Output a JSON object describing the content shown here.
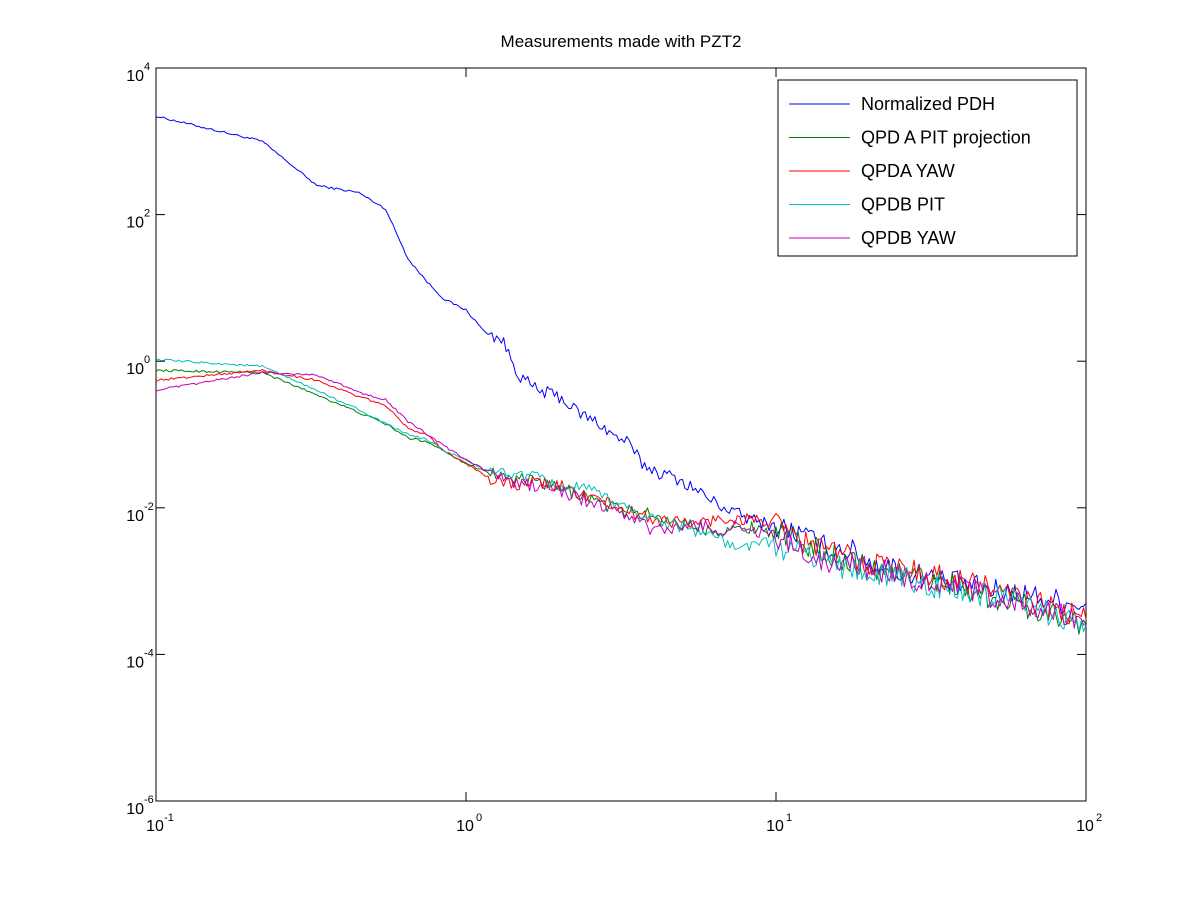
{
  "chart_data": {
    "type": "line",
    "title": "Measurements made with PZT2",
    "xlabel": "",
    "ylabel": "",
    "xscale": "log",
    "yscale": "log",
    "xlim": [
      0.1,
      100
    ],
    "ylim": [
      1e-06,
      10000
    ],
    "grid": false,
    "legend_position": "top-right",
    "x_ticks": [
      {
        "base": "10",
        "exp": "-1",
        "value": 0.1
      },
      {
        "base": "10",
        "exp": "0",
        "value": 1
      },
      {
        "base": "10",
        "exp": "1",
        "value": 10
      },
      {
        "base": "10",
        "exp": "2",
        "value": 100
      }
    ],
    "y_ticks": [
      {
        "base": "10",
        "exp": "-6",
        "value": 1e-06
      },
      {
        "base": "10",
        "exp": "-4",
        "value": 0.0001
      },
      {
        "base": "10",
        "exp": "-2",
        "value": 0.01
      },
      {
        "base": "10",
        "exp": "0",
        "value": 1
      },
      {
        "base": "10",
        "exp": "2",
        "value": 100
      },
      {
        "base": "10",
        "exp": "4",
        "value": 10000
      }
    ],
    "series": [
      {
        "name": "Normalized PDH",
        "color": "#0000ff",
        "x": [
          0.1,
          0.22,
          0.33,
          0.45,
          0.55,
          0.65,
          0.75,
          0.85,
          1.0,
          1.15,
          1.3,
          1.5,
          1.7,
          2.0,
          2.3,
          2.7,
          3.0,
          3.3,
          3.7,
          4.2,
          4.8,
          5.5,
          6.3,
          7.2,
          8.2,
          9.5,
          11,
          12.5,
          14,
          16,
          18,
          20,
          23,
          26,
          30,
          35,
          40,
          46,
          53,
          60,
          70,
          80,
          90,
          100
        ],
        "y": [
          2200,
          1000,
          250,
          200,
          120,
          25,
          12,
          7,
          5,
          2.5,
          2,
          0.6,
          0.4,
          0.33,
          0.2,
          0.14,
          0.095,
          0.08,
          0.04,
          0.03,
          0.025,
          0.018,
          0.012,
          0.009,
          0.007,
          0.006,
          0.005,
          0.004,
          0.003,
          0.0028,
          0.0025,
          0.0018,
          0.0016,
          0.0013,
          0.0012,
          0.001,
          0.0009,
          0.0008,
          0.0007,
          0.0007,
          0.0006,
          0.00055,
          0.0005,
          0.0005
        ]
      },
      {
        "name": "QPD A PIT projection",
        "color": "#008000",
        "x": [
          0.1,
          0.22,
          0.33,
          0.45,
          0.55,
          0.65,
          0.75,
          0.85,
          1.0,
          1.2,
          1.4,
          1.7,
          2.0,
          2.4,
          2.8,
          3.3,
          4.0,
          4.7,
          5.5,
          6.5,
          7.5,
          8.5,
          10,
          12,
          14,
          17,
          20,
          25,
          30,
          35,
          40,
          50,
          60,
          70,
          80,
          90,
          100
        ],
        "y": [
          0.75,
          0.7,
          0.35,
          0.2,
          0.14,
          0.09,
          0.08,
          0.06,
          0.04,
          0.03,
          0.025,
          0.022,
          0.018,
          0.015,
          0.011,
          0.009,
          0.008,
          0.0065,
          0.0055,
          0.005,
          0.005,
          0.0055,
          0.0045,
          0.0035,
          0.0025,
          0.002,
          0.0015,
          0.0013,
          0.0011,
          0.001,
          0.0008,
          0.0006,
          0.0005,
          0.0004,
          0.00035,
          0.0003,
          0.00025
        ]
      },
      {
        "name": "QPDA YAW",
        "color": "#ff0000",
        "x": [
          0.1,
          0.22,
          0.33,
          0.45,
          0.55,
          0.65,
          0.75,
          0.85,
          1.0,
          1.2,
          1.4,
          1.7,
          2.0,
          2.4,
          2.8,
          3.3,
          4.0,
          4.7,
          5.5,
          6.5,
          7.5,
          8.5,
          10,
          12,
          14,
          17,
          20,
          25,
          30,
          35,
          40,
          50,
          60,
          70,
          80,
          90,
          100
        ],
        "y": [
          0.55,
          0.75,
          0.55,
          0.33,
          0.25,
          0.12,
          0.1,
          0.06,
          0.04,
          0.025,
          0.02,
          0.022,
          0.02,
          0.015,
          0.012,
          0.009,
          0.007,
          0.0065,
          0.006,
          0.007,
          0.007,
          0.007,
          0.006,
          0.0035,
          0.003,
          0.0022,
          0.0018,
          0.0015,
          0.0013,
          0.0011,
          0.001,
          0.0008,
          0.0006,
          0.0005,
          0.0004,
          0.00035,
          0.0003
        ]
      },
      {
        "name": "QPDB PIT",
        "color": "#00bfbf",
        "x": [
          0.1,
          0.22,
          0.33,
          0.45,
          0.55,
          0.65,
          0.75,
          0.85,
          1.0,
          1.2,
          1.4,
          1.7,
          2.0,
          2.4,
          2.8,
          3.3,
          4.0,
          4.7,
          5.5,
          6.5,
          7.5,
          8.5,
          10,
          12,
          14,
          17,
          20,
          25,
          30,
          35,
          40,
          50,
          60,
          70,
          80,
          90,
          100
        ],
        "y": [
          1.05,
          0.85,
          0.4,
          0.22,
          0.14,
          0.1,
          0.085,
          0.06,
          0.045,
          0.03,
          0.03,
          0.025,
          0.02,
          0.018,
          0.014,
          0.01,
          0.007,
          0.006,
          0.005,
          0.004,
          0.0025,
          0.0035,
          0.003,
          0.0025,
          0.002,
          0.0015,
          0.0013,
          0.0011,
          0.0009,
          0.0008,
          0.0007,
          0.0006,
          0.0005,
          0.0004,
          0.00035,
          0.0003,
          0.00025
        ]
      },
      {
        "name": "QPDB YAW",
        "color": "#bf00bf",
        "x": [
          0.1,
          0.22,
          0.33,
          0.45,
          0.55,
          0.65,
          0.75,
          0.85,
          1.0,
          1.2,
          1.4,
          1.7,
          2.0,
          2.4,
          2.8,
          3.3,
          4.0,
          4.7,
          5.5,
          6.5,
          7.5,
          8.5,
          10,
          12,
          14,
          17,
          20,
          25,
          30,
          35,
          40,
          50,
          60,
          70,
          80,
          90,
          100
        ],
        "y": [
          0.4,
          0.7,
          0.65,
          0.38,
          0.3,
          0.15,
          0.1,
          0.07,
          0.045,
          0.03,
          0.022,
          0.02,
          0.017,
          0.013,
          0.01,
          0.008,
          0.005,
          0.005,
          0.006,
          0.005,
          0.0055,
          0.005,
          0.004,
          0.0025,
          0.002,
          0.0018,
          0.0015,
          0.0012,
          0.001,
          0.0009,
          0.0008,
          0.0006,
          0.0005,
          0.0004,
          0.00035,
          0.0003,
          0.00025
        ]
      }
    ]
  }
}
